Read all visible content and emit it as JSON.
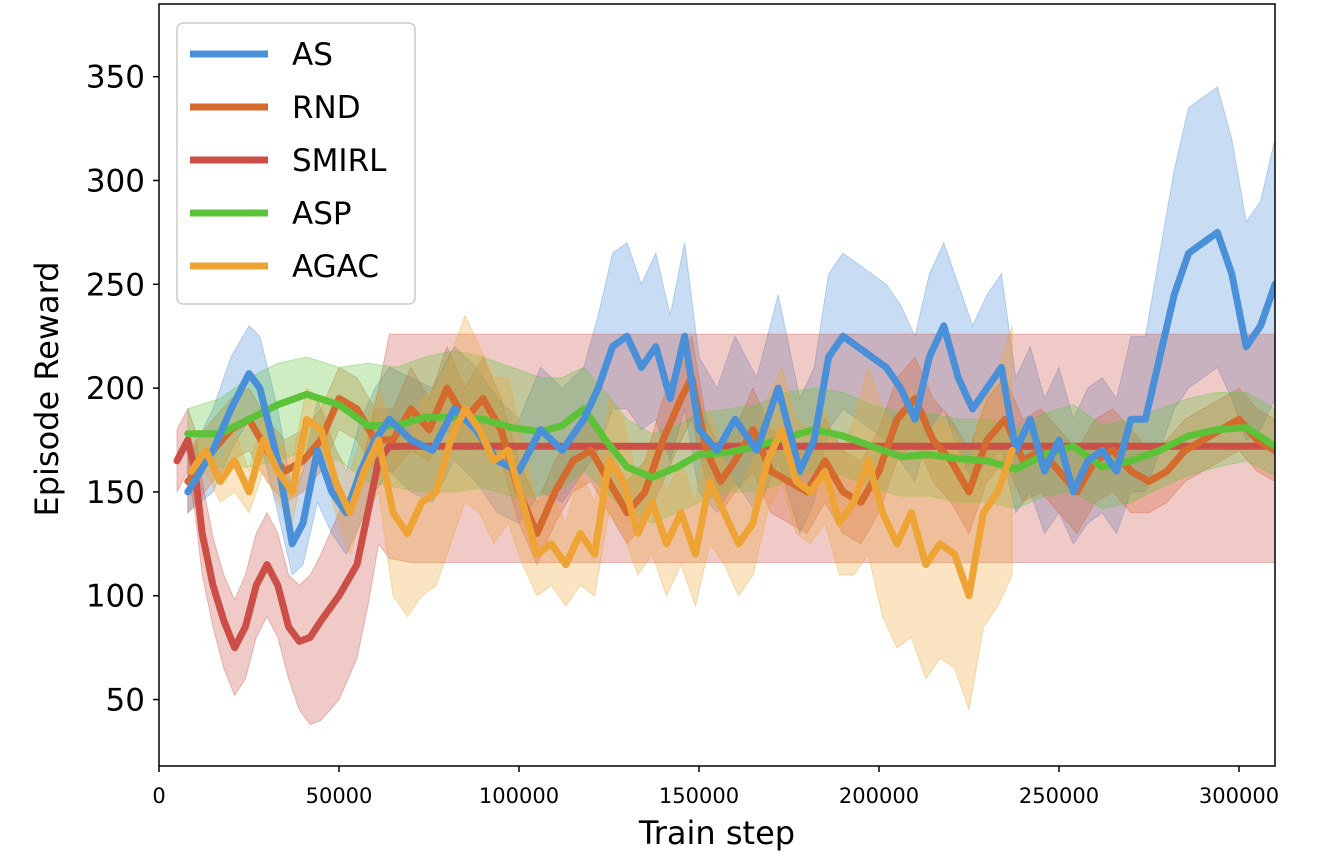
{
  "chart_data": {
    "type": "line",
    "title": "",
    "xlabel": "Train step",
    "ylabel": "Episode Reward",
    "xlim": [
      0,
      310000
    ],
    "ylim": [
      18,
      385
    ],
    "x_ticks": [
      0,
      50000,
      100000,
      150000,
      200000,
      250000,
      300000
    ],
    "x_tick_labels": [
      "0",
      "50000",
      "100000",
      "150000",
      "200000",
      "250000",
      "300000"
    ],
    "y_ticks": [
      50,
      100,
      150,
      200,
      250,
      300,
      350
    ],
    "y_tick_labels": [
      "50",
      "100",
      "150",
      "200",
      "250",
      "300",
      "350"
    ],
    "grid": false,
    "legend_position": "upper-left",
    "series": [
      {
        "name": "AS",
        "color": "#4a90d9",
        "x": [
          8000,
          15000,
          20000,
          25000,
          28000,
          33000,
          37000,
          40000,
          44000,
          48000,
          52000,
          56000,
          60000,
          64000,
          70000,
          76000,
          82000,
          88000,
          94000,
          100000,
          106000,
          112000,
          118000,
          122000,
          126000,
          130000,
          134000,
          138000,
          142000,
          146000,
          150000,
          155000,
          160000,
          166000,
          172000,
          178000,
          182000,
          186000,
          190000,
          194000,
          198000,
          202000,
          206000,
          210000,
          214000,
          218000,
          222000,
          226000,
          230000,
          234000,
          238000,
          242000,
          246000,
          250000,
          254000,
          258000,
          262000,
          266000,
          270000,
          274000,
          278000,
          282000,
          286000,
          290000,
          294000,
          298000,
          302000,
          306000,
          310000
        ],
        "y": [
          150,
          170,
          190,
          207,
          200,
          165,
          125,
          135,
          170,
          150,
          140,
          160,
          175,
          185,
          175,
          170,
          190,
          180,
          165,
          160,
          180,
          170,
          185,
          200,
          220,
          225,
          210,
          220,
          195,
          225,
          180,
          170,
          185,
          170,
          200,
          160,
          175,
          215,
          225,
          220,
          215,
          210,
          200,
          185,
          215,
          230,
          205,
          190,
          200,
          210,
          170,
          185,
          160,
          175,
          150,
          165,
          170,
          160,
          185,
          185,
          215,
          245,
          265,
          270,
          275,
          255,
          220,
          230,
          250
        ],
        "band_lower": [
          140,
          150,
          170,
          185,
          175,
          140,
          110,
          115,
          145,
          130,
          120,
          135,
          150,
          160,
          150,
          145,
          165,
          155,
          140,
          135,
          150,
          145,
          160,
          170,
          190,
          190,
          180,
          185,
          165,
          190,
          150,
          140,
          155,
          140,
          165,
          130,
          145,
          180,
          190,
          185,
          180,
          175,
          165,
          155,
          180,
          190,
          170,
          155,
          165,
          170,
          140,
          150,
          130,
          140,
          125,
          135,
          140,
          130,
          150,
          150,
          170,
          190,
          200,
          205,
          210,
          195,
          175,
          180,
          195
        ],
        "band_upper": [
          165,
          190,
          215,
          230,
          225,
          190,
          150,
          160,
          195,
          175,
          160,
          185,
          200,
          210,
          205,
          200,
          220,
          210,
          195,
          185,
          210,
          200,
          210,
          235,
          265,
          270,
          250,
          265,
          235,
          270,
          215,
          200,
          225,
          205,
          245,
          195,
          210,
          255,
          265,
          260,
          255,
          250,
          240,
          225,
          255,
          270,
          250,
          230,
          245,
          255,
          205,
          220,
          195,
          210,
          185,
          200,
          205,
          195,
          225,
          225,
          265,
          305,
          335,
          340,
          345,
          320,
          280,
          290,
          320
        ]
      },
      {
        "name": "RND",
        "color": "#d46a2e",
        "x": [
          8000,
          15000,
          20000,
          25000,
          30000,
          35000,
          40000,
          45000,
          50000,
          55000,
          60000,
          65000,
          70000,
          75000,
          80000,
          85000,
          90000,
          95000,
          100000,
          105000,
          110000,
          115000,
          120000,
          125000,
          130000,
          135000,
          140000,
          145000,
          148000,
          152000,
          156000,
          160000,
          165000,
          170000,
          175000,
          180000,
          185000,
          190000,
          195000,
          200000,
          205000,
          210000,
          215000,
          220000,
          225000,
          230000,
          235000,
          240000,
          245000,
          250000,
          255000,
          260000,
          265000,
          270000,
          275000,
          280000,
          285000,
          290000,
          295000,
          300000,
          305000,
          310000
        ],
        "y": [
          155,
          170,
          180,
          185,
          170,
          160,
          165,
          175,
          195,
          190,
          175,
          175,
          190,
          180,
          200,
          185,
          195,
          180,
          150,
          130,
          150,
          165,
          170,
          155,
          140,
          150,
          175,
          195,
          205,
          170,
          155,
          165,
          180,
          160,
          155,
          150,
          165,
          150,
          145,
          160,
          185,
          195,
          175,
          165,
          150,
          175,
          185,
          165,
          170,
          160,
          150,
          165,
          170,
          160,
          155,
          160,
          170,
          175,
          180,
          185,
          175,
          170
        ],
        "band_lower": [
          140,
          155,
          165,
          170,
          155,
          145,
          150,
          160,
          180,
          175,
          160,
          160,
          170,
          165,
          180,
          170,
          175,
          165,
          135,
          115,
          135,
          150,
          155,
          140,
          125,
          135,
          155,
          175,
          185,
          155,
          140,
          150,
          160,
          140,
          135,
          130,
          145,
          130,
          125,
          140,
          165,
          175,
          155,
          145,
          130,
          155,
          165,
          145,
          150,
          140,
          130,
          145,
          150,
          140,
          140,
          145,
          155,
          160,
          165,
          170,
          160,
          155
        ],
        "band_upper": [
          170,
          185,
          195,
          200,
          185,
          175,
          180,
          190,
          210,
          205,
          190,
          190,
          210,
          195,
          220,
          200,
          215,
          195,
          165,
          145,
          165,
          180,
          185,
          170,
          155,
          165,
          195,
          215,
          225,
          185,
          170,
          180,
          200,
          180,
          175,
          170,
          185,
          170,
          165,
          180,
          205,
          215,
          195,
          185,
          170,
          195,
          205,
          185,
          190,
          180,
          170,
          185,
          190,
          180,
          170,
          175,
          185,
          190,
          195,
          200,
          190,
          185
        ]
      },
      {
        "name": "SMIRL",
        "color": "#cc4f47",
        "x": [
          5000,
          8000,
          10000,
          12000,
          15000,
          18000,
          21000,
          24000,
          27000,
          30000,
          33000,
          36000,
          39000,
          42000,
          45000,
          50000,
          55000,
          58000,
          61000,
          64000,
          70000,
          100000,
          150000,
          200000,
          250000,
          300000,
          310000
        ],
        "y": [
          165,
          175,
          160,
          130,
          105,
          88,
          75,
          85,
          105,
          115,
          105,
          85,
          78,
          80,
          88,
          100,
          115,
          140,
          165,
          172,
          172,
          172,
          172,
          172,
          172,
          172,
          172
        ],
        "band_lower": [
          150,
          160,
          140,
          110,
          85,
          65,
          52,
          60,
          80,
          90,
          80,
          60,
          45,
          38,
          40,
          50,
          70,
          95,
          125,
          118,
          116,
          116,
          116,
          116,
          116,
          116,
          116
        ],
        "band_upper": [
          180,
          190,
          180,
          155,
          128,
          110,
          98,
          110,
          130,
          140,
          130,
          110,
          105,
          110,
          120,
          140,
          155,
          175,
          200,
          226,
          226,
          226,
          226,
          226,
          226,
          226,
          226
        ]
      },
      {
        "name": "ASP",
        "color": "#5cc237",
        "x": [
          8000,
          17000,
          25000,
          33000,
          41000,
          50000,
          58000,
          66000,
          74000,
          82000,
          90000,
          98000,
          106000,
          112000,
          118000,
          124000,
          130000,
          137000,
          144000,
          150000,
          158000,
          166000,
          174000,
          182000,
          190000,
          198000,
          206000,
          214000,
          222000,
          230000,
          238000,
          246000,
          254000,
          262000,
          270000,
          278000,
          286000,
          294000,
          302000,
          310000
        ],
        "y": [
          178,
          178,
          185,
          192,
          197,
          192,
          182,
          182,
          186,
          186,
          185,
          181,
          179,
          182,
          190,
          175,
          162,
          157,
          162,
          168,
          169,
          172,
          176,
          180,
          177,
          172,
          167,
          168,
          166,
          165,
          161,
          168,
          172,
          162,
          165,
          170,
          177,
          180,
          181,
          172
        ],
        "band_lower": [
          165,
          162,
          162,
          165,
          170,
          165,
          155,
          152,
          150,
          150,
          152,
          148,
          148,
          152,
          160,
          150,
          140,
          135,
          140,
          145,
          150,
          150,
          155,
          160,
          158,
          152,
          148,
          148,
          145,
          145,
          142,
          148,
          150,
          142,
          145,
          152,
          158,
          162,
          165,
          158
        ],
        "band_upper": [
          190,
          195,
          205,
          212,
          215,
          210,
          212,
          210,
          215,
          218,
          215,
          210,
          205,
          205,
          210,
          198,
          185,
          178,
          182,
          188,
          190,
          192,
          198,
          200,
          198,
          192,
          188,
          188,
          185,
          185,
          180,
          188,
          192,
          182,
          185,
          190,
          195,
          198,
          198,
          190
        ]
      },
      {
        "name": "AGAC",
        "color": "#eda435",
        "x": [
          9000,
          13000,
          17000,
          21000,
          25000,
          29000,
          33000,
          37000,
          41000,
          45000,
          49000,
          53000,
          57000,
          61000,
          65000,
          69000,
          73000,
          77000,
          81000,
          85000,
          89000,
          93000,
          97000,
          101000,
          105000,
          109000,
          113000,
          117000,
          121000,
          125000,
          129000,
          133000,
          137000,
          141000,
          145000,
          149000,
          153000,
          157000,
          161000,
          165000,
          169000,
          173000,
          177000,
          181000,
          185000,
          189000,
          193000,
          197000,
          201000,
          205000,
          209000,
          213000,
          217000,
          221000,
          225000,
          229000,
          233000,
          237000
        ],
        "y": [
          160,
          170,
          155,
          165,
          150,
          175,
          160,
          150,
          185,
          180,
          155,
          140,
          160,
          175,
          140,
          130,
          145,
          150,
          175,
          190,
          180,
          165,
          170,
          145,
          120,
          125,
          115,
          130,
          120,
          165,
          155,
          130,
          145,
          125,
          140,
          120,
          155,
          140,
          125,
          135,
          165,
          180,
          155,
          150,
          160,
          135,
          145,
          165,
          140,
          125,
          140,
          115,
          125,
          120,
          100,
          140,
          150,
          170
        ],
        "band_lower": [
          150,
          160,
          145,
          150,
          140,
          160,
          145,
          135,
          170,
          165,
          140,
          120,
          140,
          150,
          100,
          90,
          100,
          105,
          125,
          145,
          140,
          125,
          135,
          115,
          100,
          105,
          95,
          105,
          100,
          140,
          130,
          110,
          120,
          100,
          115,
          95,
          125,
          115,
          100,
          110,
          140,
          155,
          130,
          125,
          135,
          110,
          110,
          120,
          90,
          75,
          80,
          60,
          70,
          65,
          45,
          85,
          95,
          110
        ],
        "band_upper": [
          170,
          180,
          165,
          180,
          160,
          190,
          175,
          165,
          200,
          195,
          170,
          160,
          180,
          200,
          180,
          175,
          195,
          200,
          215,
          235,
          220,
          205,
          205,
          175,
          145,
          150,
          135,
          160,
          145,
          195,
          185,
          155,
          175,
          150,
          165,
          145,
          190,
          165,
          150,
          165,
          195,
          210,
          185,
          180,
          190,
          165,
          185,
          210,
          190,
          180,
          200,
          175,
          185,
          180,
          160,
          200,
          210,
          230
        ]
      }
    ]
  }
}
